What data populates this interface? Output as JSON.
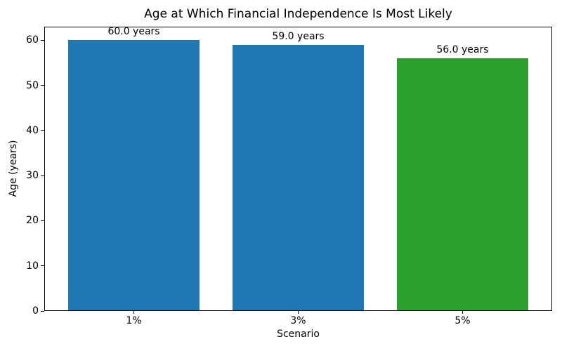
{
  "chart_data": {
    "type": "bar",
    "title": "Age at Which Financial Independence Is Most Likely",
    "xlabel": "Scenario",
    "ylabel": "Age (years)",
    "categories": [
      "1%",
      "3%",
      "5%"
    ],
    "values": [
      60.0,
      59.0,
      56.0
    ],
    "bar_labels": [
      "60.0 years",
      "59.0 years",
      "56.0 years"
    ],
    "bar_colors": [
      "#1f77b4",
      "#1f77b4",
      "#2ca02c"
    ],
    "ylim": [
      0,
      63
    ],
    "yticks": [
      0,
      10,
      20,
      30,
      40,
      50,
      60
    ],
    "xlim": [
      -0.545,
      2.545
    ],
    "bar_width": 0.8,
    "grid": false,
    "legend_position": "none",
    "background_color": "#ffffff",
    "spine_color": "#000000"
  }
}
